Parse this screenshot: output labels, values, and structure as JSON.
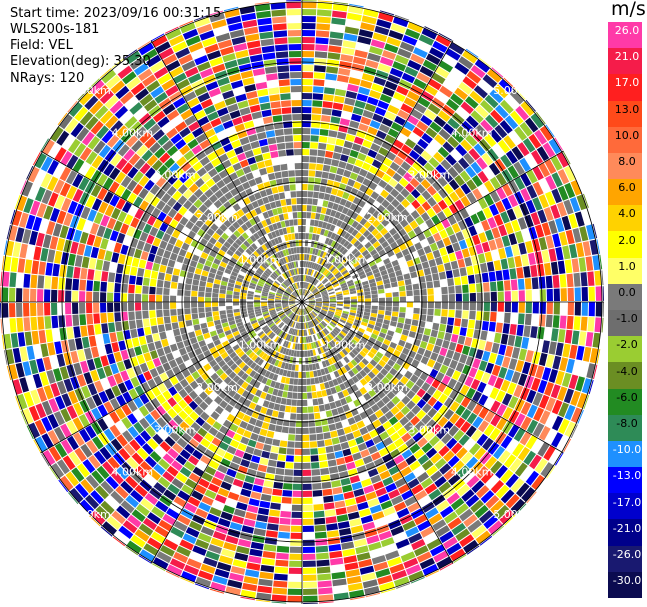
{
  "header": {
    "start_time": "Start time: 2023/09/16 00:31:15",
    "instrument": "WLS200s-181",
    "field": "Field: VEL",
    "elevation": "Elevation(deg): 35.30",
    "nrays": "NRays: 120"
  },
  "range_rings": [
    {
      "label": "1.00km"
    },
    {
      "label": "2.00km"
    },
    {
      "label": "3.00km"
    },
    {
      "label": "4.00km"
    },
    {
      "label": "5.00km"
    }
  ],
  "colorbar": {
    "unit": "m/s",
    "ticks": [
      "26.0",
      "21.0",
      "17.0",
      "13.0",
      "10.0",
      "8.0",
      "6.0",
      "4.0",
      "2.0",
      "1.0",
      "0.0",
      "-1.0",
      "-2.0",
      "-4.0",
      "-6.0",
      "-8.0",
      "-10.0",
      "-13.0",
      "-17.0",
      "-21.0",
      "-26.0",
      "-30.0"
    ],
    "colors": [
      "#ff3aa8",
      "#f51c4a",
      "#ff1f1f",
      "#ff4a1a",
      "#ff6a3a",
      "#ff8a5a",
      "#ffa500",
      "#ffd200",
      "#ffff00",
      "#ffff66",
      "#7a7a7a",
      "#6e6e6e",
      "#9acd32",
      "#6b8e23",
      "#228b22",
      "#2e8b57",
      "#1e90ff",
      "#0000ff",
      "#0000cd",
      "#00008b",
      "#191970",
      "#0b0b50"
    ]
  }
}
